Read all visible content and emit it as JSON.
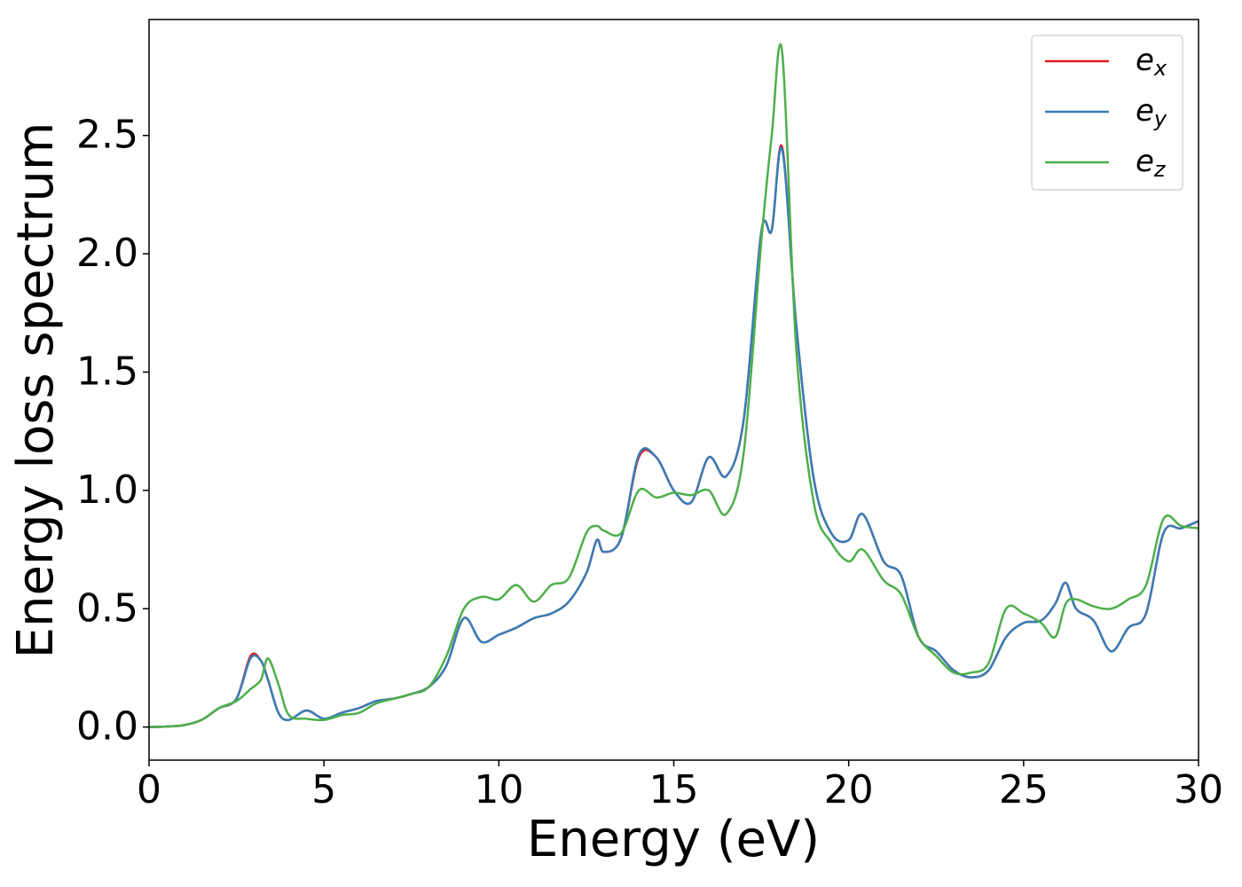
{
  "chart_data": {
    "type": "line",
    "xlabel": "Energy (eV)",
    "ylabel": "Energy loss spectrum",
    "x": [
      0,
      0.5,
      1,
      1.5,
      2,
      2.5,
      2.9,
      3.2,
      3.4,
      3.7,
      4,
      4.5,
      5,
      5.5,
      6,
      6.5,
      7,
      7.5,
      8,
      8.5,
      9,
      9.5,
      10,
      10.5,
      11,
      11.5,
      12,
      12.5,
      12.8,
      13,
      13.5,
      14,
      14.5,
      15,
      15.5,
      16,
      16.5,
      17,
      17.5,
      17.8,
      18.1,
      18.5,
      19,
      19.5,
      20,
      20.4,
      21,
      21.5,
      22,
      22.5,
      23,
      23.5,
      24,
      24.5,
      25,
      25.5,
      25.9,
      26.2,
      26.5,
      27,
      27.5,
      28,
      28.5,
      29,
      29.5,
      30
    ],
    "series": [
      {
        "name": "ex",
        "color": "#e41a1c",
        "values": [
          0,
          0.002,
          0.008,
          0.03,
          0.08,
          0.12,
          0.3,
          0.28,
          0.2,
          0.06,
          0.03,
          0.07,
          0.035,
          0.06,
          0.08,
          0.11,
          0.12,
          0.14,
          0.17,
          0.26,
          0.46,
          0.36,
          0.39,
          0.42,
          0.46,
          0.48,
          0.53,
          0.65,
          0.79,
          0.74,
          0.8,
          1.14,
          1.14,
          1.0,
          0.95,
          1.14,
          1.06,
          1.3,
          2.09,
          2.1,
          2.45,
          1.7,
          1.05,
          0.82,
          0.79,
          0.9,
          0.7,
          0.64,
          0.38,
          0.32,
          0.24,
          0.21,
          0.24,
          0.38,
          0.44,
          0.45,
          0.52,
          0.61,
          0.5,
          0.45,
          0.32,
          0.42,
          0.48,
          0.82,
          0.84,
          0.87
        ]
      },
      {
        "name": "ey",
        "color": "#377eb8",
        "values": [
          0,
          0.002,
          0.008,
          0.03,
          0.08,
          0.12,
          0.29,
          0.28,
          0.2,
          0.06,
          0.03,
          0.07,
          0.035,
          0.06,
          0.08,
          0.11,
          0.12,
          0.14,
          0.17,
          0.26,
          0.46,
          0.36,
          0.39,
          0.42,
          0.46,
          0.48,
          0.53,
          0.65,
          0.79,
          0.74,
          0.8,
          1.15,
          1.14,
          1.0,
          0.95,
          1.14,
          1.06,
          1.3,
          2.09,
          2.1,
          2.44,
          1.7,
          1.05,
          0.82,
          0.79,
          0.9,
          0.7,
          0.64,
          0.38,
          0.32,
          0.24,
          0.21,
          0.24,
          0.38,
          0.44,
          0.45,
          0.52,
          0.61,
          0.5,
          0.45,
          0.32,
          0.42,
          0.48,
          0.82,
          0.84,
          0.87
        ]
      },
      {
        "name": "ez",
        "color": "#4daf4a",
        "values": [
          0,
          0.002,
          0.008,
          0.03,
          0.08,
          0.11,
          0.16,
          0.2,
          0.29,
          0.18,
          0.05,
          0.035,
          0.03,
          0.05,
          0.06,
          0.1,
          0.12,
          0.14,
          0.17,
          0.3,
          0.5,
          0.55,
          0.54,
          0.6,
          0.53,
          0.6,
          0.63,
          0.82,
          0.85,
          0.83,
          0.82,
          1.0,
          0.97,
          0.99,
          0.98,
          1.0,
          0.9,
          1.16,
          2.05,
          2.5,
          2.85,
          1.6,
          0.95,
          0.78,
          0.7,
          0.75,
          0.62,
          0.56,
          0.38,
          0.3,
          0.23,
          0.23,
          0.27,
          0.5,
          0.48,
          0.44,
          0.38,
          0.52,
          0.54,
          0.51,
          0.5,
          0.54,
          0.6,
          0.88,
          0.85,
          0.84
        ]
      }
    ],
    "xlim": [
      0,
      30
    ],
    "xticks": [
      0,
      5,
      10,
      15,
      20,
      25,
      30
    ],
    "ylim": [
      -0.14,
      2.99
    ],
    "yticks": [
      {
        "value": 0,
        "label": "0.0"
      },
      0.5,
      {
        "value": 1,
        "label": "1.0"
      },
      1.5,
      {
        "value": 2,
        "label": "2.0"
      },
      2.5
    ],
    "legend": "upper right"
  }
}
